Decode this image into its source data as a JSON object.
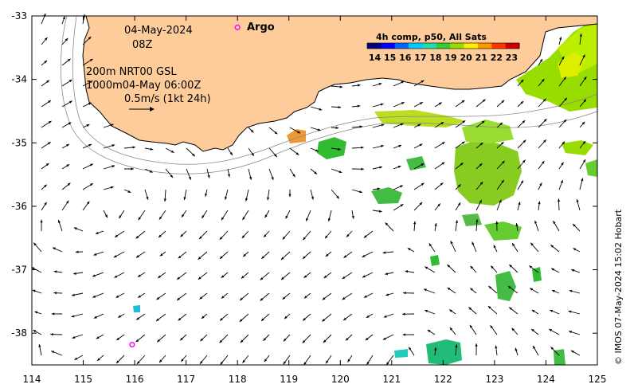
{
  "map": {
    "lon_ticks": [
      "114",
      "115",
      "116",
      "117",
      "118",
      "119",
      "120",
      "121",
      "122",
      "123",
      "124",
      "125"
    ],
    "lat_ticks": [
      "-33",
      "-34",
      "-35",
      "-36",
      "-37",
      "-38"
    ],
    "lon_range": [
      114,
      125
    ],
    "lat_range": [
      -38.5,
      -33
    ],
    "land_color": "#fdcc9a",
    "arrow_color": "#000000",
    "isobath_color": "#888888"
  },
  "annotations": {
    "date": "04-May-2024",
    "time": "08Z",
    "line1": "200m  NRT00 GSL",
    "line2": "1000m04-May 06:00Z",
    "scale": "0.5m/s (1kt 24h)"
  },
  "argo": {
    "label": "Argo",
    "color": "#ff00ff",
    "floats": [
      {
        "lon": 118.0,
        "lat": -33.18
      },
      {
        "lon": 115.95,
        "lat": -38.18
      }
    ]
  },
  "colorbar": {
    "title": "4h comp, p50, All Sats",
    "ticks": [
      "14",
      "15",
      "16",
      "17",
      "18",
      "19",
      "20",
      "21",
      "22",
      "23"
    ],
    "range": [
      13.5,
      23.5
    ],
    "colors": [
      "#00007f",
      "#0000ff",
      "#0066ff",
      "#00ccff",
      "#22ddaa",
      "#33cc33",
      "#99dd00",
      "#ffee00",
      "#ff9900",
      "#ff3300",
      "#cc0000"
    ]
  },
  "credit": "© IMOS 07-May-2024 15:02 Hobart"
}
